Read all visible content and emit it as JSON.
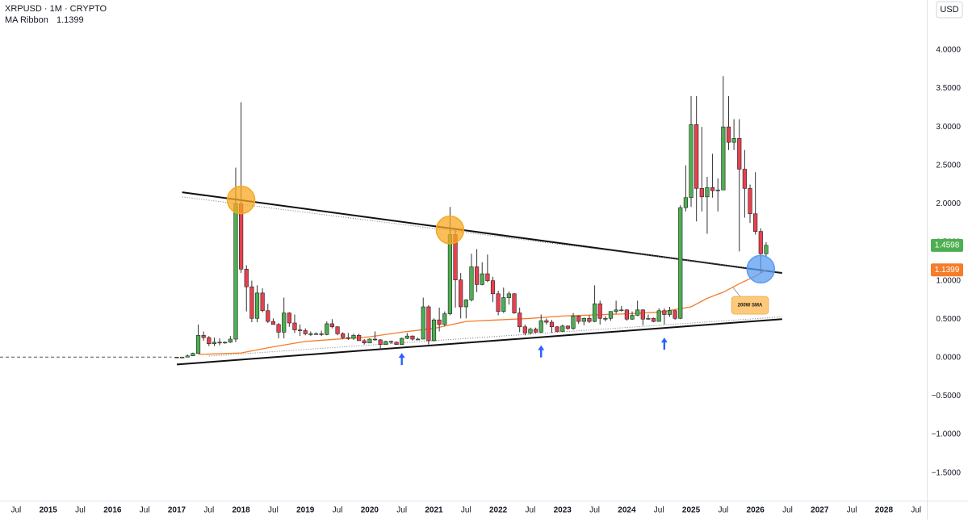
{
  "chart_data": {
    "type": "candlestick",
    "title": "XRPUSD · 1M · CRYPTO",
    "currency": "USD",
    "up_color": "#4caf50",
    "down_color": "#e8404f",
    "xlim": [
      "2014-04",
      "2028-09"
    ],
    "ylim": [
      -1.86,
      4.65
    ],
    "grid": false,
    "xticks": [
      {
        "value": "2014-07",
        "label": "Jul"
      },
      {
        "value": "2015-01",
        "label": "2015"
      },
      {
        "value": "2015-07",
        "label": "Jul"
      },
      {
        "value": "2016-01",
        "label": "2016"
      },
      {
        "value": "2016-07",
        "label": "Jul"
      },
      {
        "value": "2017-01",
        "label": "2017"
      },
      {
        "value": "2017-07",
        "label": "Jul"
      },
      {
        "value": "2018-01",
        "label": "2018"
      },
      {
        "value": "2018-07",
        "label": "Jul"
      },
      {
        "value": "2019-01",
        "label": "2019"
      },
      {
        "value": "2019-07",
        "label": "Jul"
      },
      {
        "value": "2020-01",
        "label": "2020"
      },
      {
        "value": "2020-07",
        "label": "Jul"
      },
      {
        "value": "2021-01",
        "label": "2021"
      },
      {
        "value": "2021-07",
        "label": "Jul"
      },
      {
        "value": "2022-01",
        "label": "2022"
      },
      {
        "value": "2022-07",
        "label": "Jul"
      },
      {
        "value": "2023-01",
        "label": "2023"
      },
      {
        "value": "2023-07",
        "label": "Jul"
      },
      {
        "value": "2024-01",
        "label": "2024"
      },
      {
        "value": "2024-07",
        "label": "Jul"
      },
      {
        "value": "2025-01",
        "label": "2025"
      },
      {
        "value": "2025-07",
        "label": "Jul"
      },
      {
        "value": "2026-01",
        "label": "2026"
      },
      {
        "value": "2026-07",
        "label": "Jul"
      },
      {
        "value": "2027-01",
        "label": "2027"
      },
      {
        "value": "2027-07",
        "label": "Jul"
      },
      {
        "value": "2028-01",
        "label": "2028"
      },
      {
        "value": "2028-07",
        "label": "Jul"
      }
    ],
    "yticks": [
      {
        "value": 4,
        "label": "4.0000"
      },
      {
        "value": 3.5,
        "label": "3.5000"
      },
      {
        "value": 3,
        "label": "3.0000"
      },
      {
        "value": 2.5,
        "label": "2.5000"
      },
      {
        "value": 2,
        "label": "2.0000"
      },
      {
        "value": 1.5,
        "label": "1.5000"
      },
      {
        "value": 1,
        "label": "1.0000"
      },
      {
        "value": 0.5,
        "label": "0.5000"
      },
      {
        "value": 0,
        "label": "0.0000"
      },
      {
        "value": -0.5,
        "label": "−0.5000"
      },
      {
        "value": -1,
        "label": "−1.0000"
      },
      {
        "value": -1.5,
        "label": "−1.5000"
      }
    ],
    "x": [
      "2017-01",
      "2017-02",
      "2017-03",
      "2017-04",
      "2017-05",
      "2017-06",
      "2017-07",
      "2017-08",
      "2017-09",
      "2017-10",
      "2017-11",
      "2017-12",
      "2018-01",
      "2018-02",
      "2018-03",
      "2018-04",
      "2018-05",
      "2018-06",
      "2018-07",
      "2018-08",
      "2018-09",
      "2018-10",
      "2018-11",
      "2018-12",
      "2019-01",
      "2019-02",
      "2019-03",
      "2019-04",
      "2019-05",
      "2019-06",
      "2019-07",
      "2019-08",
      "2019-09",
      "2019-10",
      "2019-11",
      "2019-12",
      "2020-01",
      "2020-02",
      "2020-03",
      "2020-04",
      "2020-05",
      "2020-06",
      "2020-07",
      "2020-08",
      "2020-09",
      "2020-10",
      "2020-11",
      "2020-12",
      "2021-01",
      "2021-02",
      "2021-03",
      "2021-04",
      "2021-05",
      "2021-06",
      "2021-07",
      "2021-08",
      "2021-09",
      "2021-10",
      "2021-11",
      "2021-12",
      "2022-01",
      "2022-02",
      "2022-03",
      "2022-04",
      "2022-05",
      "2022-06",
      "2022-07",
      "2022-08",
      "2022-09",
      "2022-10",
      "2022-11",
      "2022-12",
      "2023-01",
      "2023-02",
      "2023-03",
      "2023-04",
      "2023-05",
      "2023-06",
      "2023-07",
      "2023-08",
      "2023-09",
      "2023-10",
      "2023-11",
      "2023-12",
      "2024-01",
      "2024-02",
      "2024-03",
      "2024-04",
      "2024-05",
      "2024-06",
      "2024-07",
      "2024-08",
      "2024-09",
      "2024-10",
      "2024-11",
      "2024-12",
      "2025-01",
      "2025-02",
      "2025-03",
      "2025-04",
      "2025-05",
      "2025-06",
      "2025-07",
      "2025-08",
      "2025-09",
      "2025-10",
      "2025-11",
      "2025-12",
      "2026-01",
      "2026-02",
      "2026-03"
    ],
    "open": [
      0.0064,
      0.0063,
      0.0064,
      0.022,
      0.054,
      0.29,
      0.26,
      0.18,
      0.2,
      0.19,
      0.2,
      0.24,
      2.0,
      1.15,
      0.92,
      0.51,
      0.84,
      0.61,
      0.47,
      0.43,
      0.33,
      0.58,
      0.45,
      0.36,
      0.35,
      0.31,
      0.31,
      0.31,
      0.3,
      0.44,
      0.4,
      0.31,
      0.26,
      0.25,
      0.29,
      0.22,
      0.19,
      0.24,
      0.23,
      0.17,
      0.21,
      0.2,
      0.17,
      0.25,
      0.28,
      0.24,
      0.24,
      0.66,
      0.22,
      0.49,
      0.43,
      0.57,
      1.6,
      1.01,
      0.66,
      0.75,
      1.18,
      0.95,
      1.09,
      1.0,
      0.83,
      0.6,
      0.78,
      0.83,
      0.58,
      0.4,
      0.32,
      0.37,
      0.33,
      0.48,
      0.46,
      0.4,
      0.34,
      0.41,
      0.38,
      0.54,
      0.47,
      0.51,
      0.47,
      0.7,
      0.51,
      0.51,
      0.6,
      0.62,
      0.62,
      0.5,
      0.55,
      0.62,
      0.5,
      0.51,
      0.47,
      0.61,
      0.56,
      0.61,
      0.51,
      1.95,
      2.08,
      3.03,
      2.2,
      2.09,
      2.21,
      2.17,
      2.18,
      3.0,
      2.8,
      2.85,
      2.45,
      2.2,
      1.87,
      1.64,
      1.35
    ],
    "high": [
      0.0075,
      0.0066,
      0.04,
      0.065,
      0.43,
      0.34,
      0.28,
      0.26,
      0.25,
      0.21,
      0.28,
      2.47,
      3.32,
      1.2,
      1.0,
      0.94,
      0.9,
      0.7,
      0.51,
      0.45,
      0.78,
      0.59,
      0.56,
      0.43,
      0.38,
      0.34,
      0.33,
      0.35,
      0.47,
      0.5,
      0.41,
      0.33,
      0.32,
      0.31,
      0.31,
      0.24,
      0.25,
      0.34,
      0.24,
      0.22,
      0.22,
      0.21,
      0.26,
      0.32,
      0.29,
      0.26,
      0.78,
      0.68,
      0.51,
      0.65,
      0.6,
      1.96,
      1.67,
      1.1,
      0.76,
      1.35,
      1.41,
      1.24,
      1.34,
      1.05,
      0.87,
      0.91,
      0.86,
      0.84,
      0.65,
      0.43,
      0.39,
      0.39,
      0.56,
      0.51,
      0.49,
      0.41,
      0.43,
      0.42,
      0.58,
      0.55,
      0.52,
      0.55,
      0.94,
      0.74,
      0.54,
      0.57,
      0.74,
      0.67,
      0.63,
      0.6,
      0.74,
      0.63,
      0.56,
      0.52,
      0.64,
      0.64,
      0.66,
      0.62,
      1.98,
      2.5,
      3.4,
      3.4,
      3.0,
      2.35,
      2.65,
      2.33,
      3.66,
      3.4,
      3.1,
      3.1,
      2.7,
      2.25,
      2.41,
      1.68,
      1.5
    ],
    "low": [
      0.0058,
      0.0055,
      0.006,
      0.02,
      0.053,
      0.22,
      0.15,
      0.15,
      0.16,
      0.18,
      0.19,
      0.2,
      1.1,
      0.6,
      0.46,
      0.46,
      0.59,
      0.45,
      0.43,
      0.25,
      0.25,
      0.4,
      0.32,
      0.28,
      0.29,
      0.28,
      0.3,
      0.28,
      0.29,
      0.38,
      0.29,
      0.24,
      0.23,
      0.23,
      0.22,
      0.17,
      0.19,
      0.22,
      0.11,
      0.17,
      0.18,
      0.17,
      0.17,
      0.24,
      0.22,
      0.23,
      0.24,
      0.17,
      0.21,
      0.34,
      0.41,
      0.55,
      0.65,
      0.51,
      0.51,
      0.73,
      0.85,
      0.94,
      0.98,
      0.72,
      0.55,
      0.58,
      0.69,
      0.57,
      0.33,
      0.29,
      0.3,
      0.32,
      0.32,
      0.43,
      0.32,
      0.33,
      0.34,
      0.36,
      0.36,
      0.44,
      0.42,
      0.45,
      0.46,
      0.43,
      0.47,
      0.48,
      0.57,
      0.6,
      0.48,
      0.49,
      0.54,
      0.42,
      0.49,
      0.46,
      0.47,
      0.43,
      0.53,
      0.49,
      0.5,
      1.9,
      1.96,
      1.77,
      1.9,
      1.61,
      2.08,
      1.9,
      2.2,
      2.7,
      2.7,
      1.38,
      1.82,
      1.75,
      1.6,
      1.1,
      1.3
    ],
    "close": [
      0.0063,
      0.0064,
      0.022,
      0.054,
      0.29,
      0.26,
      0.18,
      0.2,
      0.19,
      0.2,
      0.24,
      2.0,
      1.15,
      0.92,
      0.51,
      0.84,
      0.61,
      0.47,
      0.43,
      0.33,
      0.58,
      0.45,
      0.36,
      0.35,
      0.31,
      0.31,
      0.31,
      0.3,
      0.44,
      0.4,
      0.31,
      0.26,
      0.25,
      0.29,
      0.22,
      0.19,
      0.24,
      0.23,
      0.17,
      0.21,
      0.2,
      0.17,
      0.25,
      0.28,
      0.24,
      0.24,
      0.66,
      0.22,
      0.49,
      0.43,
      0.57,
      1.6,
      1.01,
      0.66,
      0.75,
      1.18,
      0.95,
      1.09,
      1.0,
      0.83,
      0.6,
      0.78,
      0.83,
      0.58,
      0.4,
      0.32,
      0.37,
      0.33,
      0.48,
      0.46,
      0.4,
      0.34,
      0.41,
      0.38,
      0.54,
      0.47,
      0.51,
      0.47,
      0.7,
      0.51,
      0.51,
      0.6,
      0.62,
      0.62,
      0.5,
      0.55,
      0.62,
      0.5,
      0.51,
      0.47,
      0.61,
      0.56,
      0.61,
      0.51,
      1.95,
      2.08,
      3.03,
      2.2,
      2.09,
      2.21,
      2.17,
      2.18,
      3.0,
      2.8,
      2.85,
      2.45,
      2.2,
      1.87,
      1.64,
      1.35,
      1.4598
    ],
    "pre_history": {
      "x": [
        "2014-04",
        "2016-12"
      ],
      "values": [
        0.006,
        0.006
      ],
      "color": "#555555"
    },
    "ma": {
      "name": "MA Ribbon",
      "color": "#f57c2a",
      "x": [
        "2017-05",
        "2018-01",
        "2018-07",
        "2019-01",
        "2020-01",
        "2020-07",
        "2021-01",
        "2021-07",
        "2022-01",
        "2022-07",
        "2023-01",
        "2024-01",
        "2024-07",
        "2025-01",
        "2025-04",
        "2025-07",
        "2025-10",
        "2026-01",
        "2026-03"
      ],
      "values": [
        0.04,
        0.06,
        0.14,
        0.21,
        0.27,
        0.33,
        0.38,
        0.47,
        0.49,
        0.51,
        0.54,
        0.57,
        0.59,
        0.66,
        0.77,
        0.85,
        0.96,
        1.06,
        1.1399
      ]
    },
    "trendlines": [
      {
        "x": [
          "2017-02",
          "2026-06"
        ],
        "values": [
          2.15,
          1.1
        ],
        "style": "solid"
      },
      {
        "x": [
          "2017-02",
          "2026-06"
        ],
        "values": [
          2.09,
          1.11
        ],
        "style": "dotted"
      },
      {
        "x": [
          "2017-01",
          "2026-06"
        ],
        "values": [
          -0.09,
          0.5
        ],
        "style": "solid"
      },
      {
        "x": [
          "2017-07",
          "2026-06"
        ],
        "values": [
          0.02,
          0.53
        ],
        "style": "dotted"
      }
    ],
    "circles": [
      {
        "x": "2018-01",
        "y": 2.05,
        "color": "#f7a823"
      },
      {
        "x": "2021-04",
        "y": 1.66,
        "color": "#f7a823"
      },
      {
        "x": "2026-02",
        "y": 1.15,
        "color": "#5b9cf0"
      }
    ],
    "arrows": [
      {
        "x": "2020-07",
        "y": 0.06
      },
      {
        "x": "2022-09",
        "y": 0.16
      },
      {
        "x": "2024-08",
        "y": 0.26
      }
    ],
    "annotation": {
      "text": "200W SMA",
      "x": "2025-12",
      "y": 0.68
    }
  }
}
